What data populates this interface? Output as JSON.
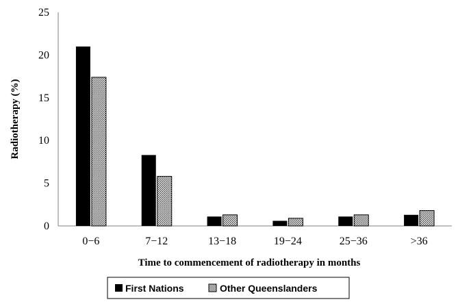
{
  "chart_data": {
    "type": "bar",
    "title": "",
    "xlabel": "Time to commencement of radiotherapy in months",
    "ylabel": "Radiotherapy (%)",
    "ylim": [
      0,
      25
    ],
    "yticks": [
      "0",
      "5",
      "10",
      "15",
      "20",
      "25"
    ],
    "categories": [
      "0−6",
      "7−12",
      "13−18",
      "19−24",
      "25−36",
      ">36"
    ],
    "series": [
      {
        "name": "First Nations",
        "values": [
          21.0,
          8.3,
          1.1,
          0.6,
          1.1,
          1.3
        ],
        "color": "#000000",
        "pattern": "solid"
      },
      {
        "name": "Other Queenslanders",
        "values": [
          17.4,
          5.8,
          1.3,
          0.9,
          1.3,
          1.8
        ],
        "color": "#ffffff",
        "pattern": "dotted"
      }
    ],
    "grid": false,
    "legend_position": "bottom"
  }
}
